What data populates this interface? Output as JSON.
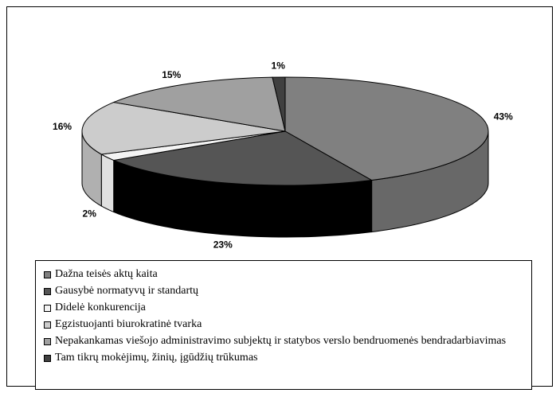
{
  "chart_data": {
    "type": "pie",
    "categories": [
      "Dažna teisės aktų kaita",
      "Gausybė normatyvų ir standartų",
      "Didelė konkurencija",
      "Egzistuojanti biurokratinė tvarka",
      "Nepakankamas viešojo administravimo subjektų ir statybos verslo bendruomenės bendradarbiavimas",
      "Tam tikrų mokėjimų, žinių, įgūdžių trūkumas"
    ],
    "values": [
      43,
      23,
      2,
      16,
      15,
      1
    ],
    "value_labels": [
      "43%",
      "23%",
      "2%",
      "16%",
      "15%",
      "1%"
    ],
    "colors": [
      "#808080",
      "#555555",
      "#f4f4f4",
      "#cccccc",
      "#a0a0a0",
      "#404040"
    ],
    "side_colors": [
      "#686868",
      "#000000",
      "#e0e0e0",
      "#b0b0b0",
      "#888888",
      "#2a2a2a"
    ]
  }
}
